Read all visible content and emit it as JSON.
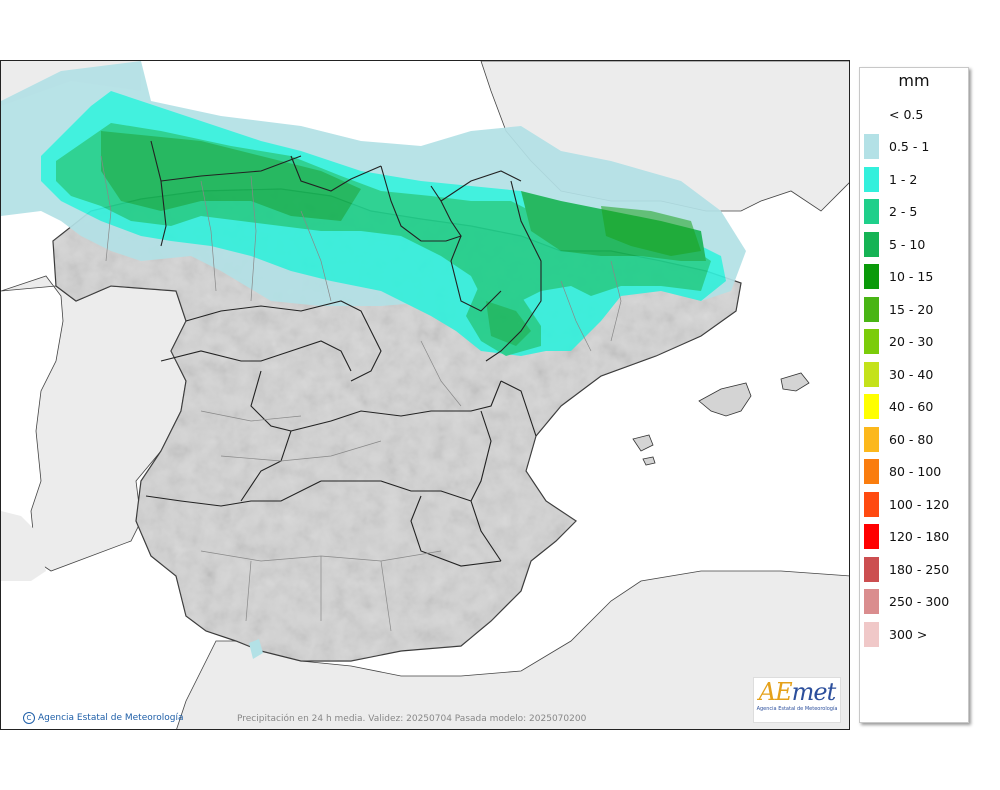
{
  "legend": {
    "unit": "mm",
    "items": [
      {
        "label": "< 0.5",
        "color": "#ffffff"
      },
      {
        "label": "0.5 - 1",
        "color": "#b3e1e6"
      },
      {
        "label": "1 - 2",
        "color": "#33f0dc"
      },
      {
        "label": "2 - 5",
        "color": "#1fcf8a"
      },
      {
        "label": "5 - 10",
        "color": "#15b354"
      },
      {
        "label": "10 - 15",
        "color": "#0a9a0a"
      },
      {
        "label": "15 - 20",
        "color": "#49b515"
      },
      {
        "label": "20 - 30",
        "color": "#7bcc0a"
      },
      {
        "label": "30 - 40",
        "color": "#c4e21a"
      },
      {
        "label": "40 - 60",
        "color": "#ffff00"
      },
      {
        "label": "60 - 80",
        "color": "#fcb81c"
      },
      {
        "label": "80 - 100",
        "color": "#fa7d0e"
      },
      {
        "label": "100 - 120",
        "color": "#ff4a10"
      },
      {
        "label": "120 - 180",
        "color": "#ff0000"
      },
      {
        "label": "180 - 250",
        "color": "#cc4e50"
      },
      {
        "label": "250 - 300",
        "color": "#da8d8e"
      },
      {
        "label": "300 >",
        "color": "#f0c8c8"
      }
    ]
  },
  "map": {
    "caption": "Precipitación en 24 h media. Validez: 20250704 Pasada modelo: 2025070200",
    "copyright": "Agencia Estatal de Meteorología",
    "copyright_symbol": "C",
    "logo": {
      "mark_a": "A",
      "mark_e": "E",
      "mark_rest": "met",
      "subtitle": "Agencia Estatal de Meteorología"
    },
    "colors": {
      "sea": "#ffffff",
      "land_foreign": "#ececec",
      "land_spain": "#d4d4d4",
      "border": "#333333"
    }
  }
}
